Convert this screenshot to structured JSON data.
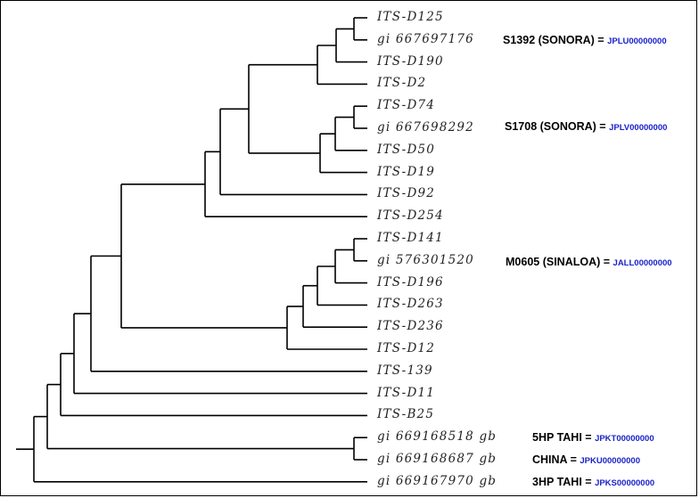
{
  "tree": {
    "leaves": [
      {
        "label": "ITS-D125"
      },
      {
        "label": "gi 667697176"
      },
      {
        "label": "ITS-D190"
      },
      {
        "label": "ITS-D2"
      },
      {
        "label": "ITS-D74"
      },
      {
        "label": "gi 667698292"
      },
      {
        "label": "ITS-D50"
      },
      {
        "label": "ITS-D19"
      },
      {
        "label": "ITS-D92"
      },
      {
        "label": "ITS-D254"
      },
      {
        "label": "ITS-D141"
      },
      {
        "label": "gi 576301520"
      },
      {
        "label": "ITS-D196"
      },
      {
        "label": "ITS-D263"
      },
      {
        "label": "ITS-D236"
      },
      {
        "label": "ITS-D12"
      },
      {
        "label": "ITS-139"
      },
      {
        "label": "ITS-D11"
      },
      {
        "label": "ITS-B25"
      },
      {
        "label": "gi 669168518 gb"
      },
      {
        "label": "gi 669168687 gb"
      },
      {
        "label": "gi 669167970 gb"
      }
    ],
    "annotations": [
      {
        "text": "S1392 (SONORA) =",
        "accession": "JPLU00000000",
        "leaf": 1
      },
      {
        "text": "S1708 (SONORA) =",
        "accession": "JPLV00000000",
        "leaf": 5
      },
      {
        "text": "M0605 (SINALOA) =",
        "accession": "JALL00000000",
        "leaf": 11
      },
      {
        "text": "5HP TAHI =",
        "accession": "JPKT00000000",
        "leaf": 19
      },
      {
        "text": "CHINA =",
        "accession": "JPKU00000000",
        "leaf": 20
      },
      {
        "text": "3HP TAHI =",
        "accession": "JPKS00000000",
        "leaf": 21
      }
    ],
    "colors": {
      "branch": "#000000",
      "leaf_text": "#222222",
      "accession": "#1a22c8"
    }
  }
}
